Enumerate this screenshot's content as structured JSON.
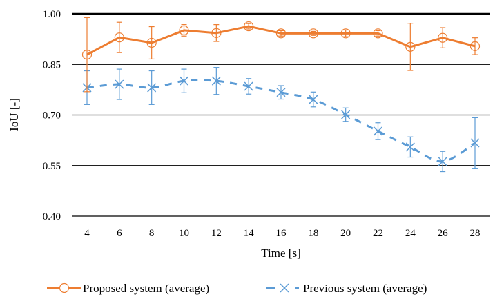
{
  "chart_data": {
    "type": "line",
    "title": "",
    "xlabel": "Time [s]",
    "ylabel": "IoU [-]",
    "x": [
      4,
      6,
      8,
      10,
      12,
      14,
      16,
      18,
      20,
      22,
      24,
      26,
      28
    ],
    "x_tick_labels": [
      "4",
      "6",
      "8",
      "10",
      "12",
      "14",
      "16",
      "18",
      "20",
      "22",
      "24",
      "26",
      "28"
    ],
    "ylim": [
      0.4,
      1.0
    ],
    "y_ticks": [
      0.4,
      0.55,
      0.7,
      0.85,
      1.0
    ],
    "y_tick_labels": [
      "0.40",
      "0.55",
      "0.70",
      "0.85",
      "1.00"
    ],
    "grid": "horizontal",
    "legend_position": "bottom",
    "series": [
      {
        "name": "Proposed system (average)",
        "color": "#ED7D31",
        "line_style": "solid",
        "marker": "circle",
        "values": [
          0.879,
          0.93,
          0.914,
          0.951,
          0.943,
          0.963,
          0.942,
          0.942,
          0.942,
          0.942,
          0.902,
          0.929,
          0.904
        ],
        "error": [
          0.11,
          0.045,
          0.048,
          0.017,
          0.025,
          0.008,
          0.008,
          0.006,
          0.01,
          0.008,
          0.07,
          0.03,
          0.025
        ]
      },
      {
        "name": "Previous system (average)",
        "color": "#5B9BD5",
        "line_style": "dashed",
        "marker": "x",
        "values": [
          0.781,
          0.791,
          0.781,
          0.801,
          0.801,
          0.785,
          0.767,
          0.746,
          0.701,
          0.652,
          0.605,
          0.562,
          0.617
        ],
        "error": [
          0.05,
          0.045,
          0.05,
          0.035,
          0.04,
          0.023,
          0.02,
          0.022,
          0.02,
          0.025,
          0.03,
          0.03,
          0.075
        ]
      }
    ]
  }
}
